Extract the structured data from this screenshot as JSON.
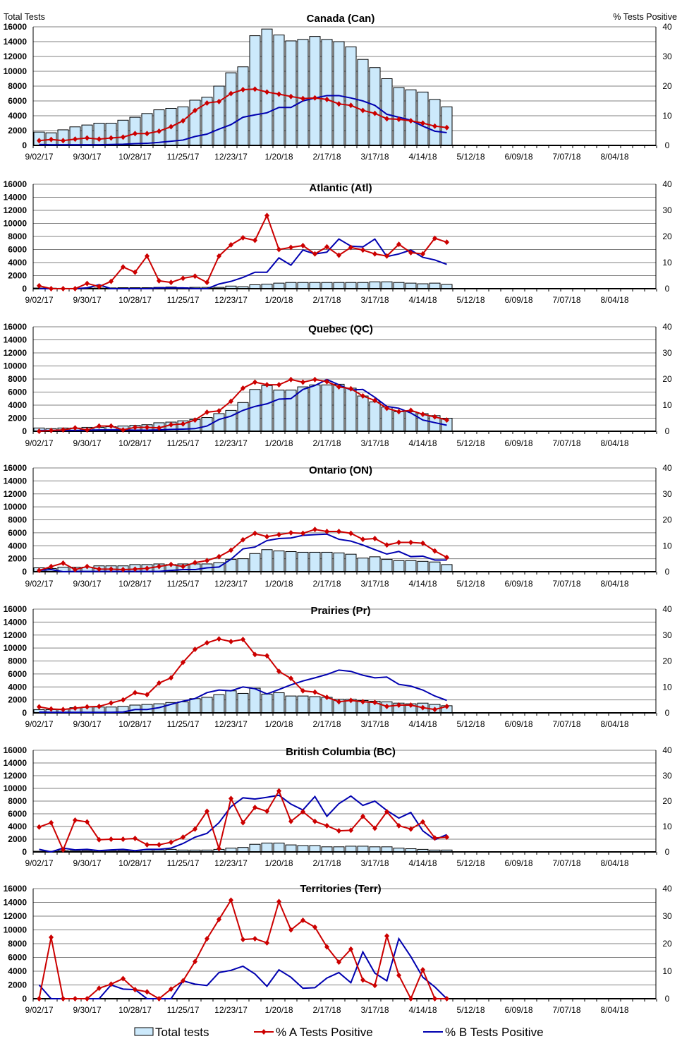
{
  "axis_labels": {
    "left": "Total Tests",
    "right": "% Tests Positive"
  },
  "legend": {
    "total": "Total tests",
    "a": "% A Tests Positive",
    "b": "% B Tests Positive"
  },
  "colors": {
    "bar_fill": "#cce9fb",
    "bar_edge": "#000000",
    "series_a": "#cc0000",
    "series_b": "#0000b0",
    "grid": "#808080"
  },
  "chart_data": {
    "type": "bar+line",
    "grid": true,
    "legend_position": "bottom",
    "ylim_left": [
      0,
      16000
    ],
    "ylim_right": [
      0,
      40
    ],
    "y_ticks_left": [
      "0",
      "2000",
      "4000",
      "6000",
      "8000",
      "10000",
      "12000",
      "14000",
      "16000"
    ],
    "y_ticks_right": [
      "0",
      "10",
      "20",
      "30",
      "40"
    ],
    "x_tick_labels": [
      "9/02/17",
      "9/30/17",
      "10/28/17",
      "11/25/17",
      "12/23/17",
      "1/20/18",
      "2/17/18",
      "3/17/18",
      "4/14/18",
      "5/12/18",
      "6/09/18",
      "7/07/18",
      "8/04/18"
    ],
    "categories": [
      "9/02/17",
      "9/09/17",
      "9/16/17",
      "9/23/17",
      "9/30/17",
      "10/07/17",
      "10/14/17",
      "10/21/17",
      "10/28/17",
      "11/04/17",
      "11/11/17",
      "11/18/17",
      "11/25/17",
      "12/02/17",
      "12/09/17",
      "12/16/17",
      "12/23/17",
      "12/30/17",
      "1/06/18",
      "1/13/18",
      "1/20/18",
      "1/27/18",
      "2/03/18",
      "2/10/18",
      "2/17/18",
      "2/24/18",
      "3/03/18",
      "3/10/18",
      "3/17/18",
      "3/24/18",
      "3/31/18",
      "4/07/18",
      "4/14/18",
      "4/21/18",
      "4/28/18"
    ],
    "panels": [
      {
        "title": "Canada (Can)",
        "total_tests": [
          1800,
          1700,
          2100,
          2500,
          2750,
          3000,
          3000,
          3400,
          3800,
          4300,
          4800,
          5000,
          5200,
          6100,
          6500,
          8000,
          9800,
          10600,
          14800,
          15700,
          14900,
          14100,
          14300,
          14700,
          14300,
          14000,
          13300,
          11600,
          10500,
          9000,
          7800,
          7500,
          7200,
          6200,
          5200
        ],
        "pct_a": [
          1.6,
          2,
          1.6,
          2.1,
          2.5,
          2.1,
          2.5,
          2.8,
          4,
          4,
          4.8,
          6.3,
          8.3,
          11.8,
          14.3,
          14.8,
          17.5,
          18.8,
          19,
          18,
          17.3,
          16.5,
          15.8,
          16,
          15.5,
          14,
          13.5,
          11.8,
          10.8,
          9,
          8.8,
          8.3,
          7.5,
          6.5,
          6
        ],
        "pct_b": [
          0.3,
          0.2,
          0.2,
          0.2,
          0.2,
          0.2,
          0.3,
          0.4,
          0.6,
          0.7,
          1,
          1.4,
          1.8,
          3,
          3.8,
          5.5,
          7,
          9.5,
          10.3,
          11,
          12.8,
          12.8,
          15,
          16,
          16.8,
          16.8,
          16,
          15,
          13.5,
          10.5,
          9.5,
          8.5,
          6.5,
          4.8,
          4.3
        ]
      },
      {
        "title": "Atlantic (Atl)",
        "total_tests": [
          100,
          80,
          60,
          60,
          100,
          100,
          120,
          150,
          150,
          150,
          200,
          250,
          150,
          200,
          200,
          200,
          400,
          300,
          600,
          700,
          850,
          950,
          950,
          950,
          950,
          950,
          950,
          950,
          1050,
          1050,
          950,
          850,
          750,
          850,
          650
        ],
        "pct_a": [
          1.1,
          0,
          0,
          0,
          2,
          0.8,
          2.8,
          8.3,
          6.3,
          12.5,
          3,
          2.4,
          4,
          4.8,
          2.4,
          12.5,
          16.8,
          19.5,
          18.5,
          28,
          15,
          15.8,
          16.5,
          13.3,
          16,
          12.8,
          15.8,
          14.8,
          13.3,
          12.5,
          17,
          13.8,
          13.3,
          19.3,
          17.8
        ],
        "pct_b": [
          0,
          0,
          0,
          0,
          0.3,
          1.5,
          0,
          0,
          0,
          0,
          0.3,
          0.3,
          0.3,
          0,
          0,
          1.8,
          2.8,
          4.3,
          6.3,
          6.3,
          11.8,
          9,
          14.8,
          13.3,
          14,
          19,
          16.3,
          16,
          19,
          12.3,
          13.3,
          14.8,
          12,
          11,
          9.3
        ]
      },
      {
        "title": "Quebec (QC)",
        "total_tests": [
          500,
          400,
          500,
          500,
          600,
          600,
          700,
          800,
          900,
          1000,
          1300,
          1400,
          1600,
          1800,
          2100,
          2700,
          3200,
          4400,
          6400,
          7000,
          6300,
          6300,
          6800,
          7100,
          7100,
          7200,
          6600,
          5400,
          4500,
          3700,
          3000,
          3000,
          2700,
          2400,
          2000
        ],
        "pct_a": [
          0,
          0.3,
          0.5,
          1.3,
          0.5,
          2,
          2,
          0.5,
          1.5,
          1.5,
          1.3,
          2.5,
          2.8,
          4.3,
          7.3,
          7.8,
          11.5,
          16.5,
          18.8,
          17.8,
          17.8,
          19.8,
          18.8,
          19.8,
          19,
          17,
          16.3,
          13.5,
          11.8,
          8.8,
          7.5,
          8,
          6.5,
          5.5,
          4.3
        ],
        "pct_b": [
          0.3,
          0.3,
          0.3,
          0.3,
          0.4,
          0.5,
          0.5,
          0.5,
          0.4,
          0.4,
          0.5,
          0.7,
          0.8,
          1,
          2,
          4.5,
          5.8,
          8,
          9.5,
          10.5,
          12.3,
          12.5,
          16,
          17.5,
          19.8,
          17.8,
          15.8,
          16,
          13,
          9.5,
          8.8,
          7,
          4.3,
          3.3,
          2.3
        ]
      },
      {
        "title": "Ontario (ON)",
        "total_tests": [
          600,
          500,
          700,
          700,
          700,
          900,
          900,
          900,
          1100,
          1100,
          1200,
          1100,
          1200,
          1200,
          1200,
          1400,
          1900,
          2000,
          2800,
          3400,
          3200,
          3100,
          3000,
          3000,
          3000,
          2900,
          2700,
          2100,
          2300,
          1900,
          1700,
          1700,
          1600,
          1500,
          1100
        ],
        "pct_a": [
          0.5,
          2,
          3.3,
          0.8,
          2,
          1,
          1,
          0.8,
          1,
          1.3,
          2,
          2.8,
          2,
          3.5,
          4.3,
          5.8,
          8.3,
          12.3,
          14.8,
          13.5,
          14.3,
          15,
          14.8,
          16.3,
          15.5,
          15.5,
          14.8,
          12.5,
          12.8,
          10.3,
          11.3,
          11.3,
          11,
          8,
          5.5
        ],
        "pct_b": [
          0.5,
          0.8,
          0,
          0.1,
          0.1,
          0.1,
          0.1,
          0.1,
          0.1,
          0.1,
          0.1,
          0.5,
          0.8,
          0.8,
          1.5,
          1.8,
          4.8,
          8.8,
          9.5,
          12,
          12.8,
          13,
          14,
          14.3,
          14.5,
          12.5,
          11.8,
          10.3,
          8.5,
          6.8,
          7.8,
          5.8,
          6,
          4.5,
          4.5
        ]
      },
      {
        "title": "Prairies (Pr)",
        "total_tests": [
          500,
          500,
          600,
          800,
          900,
          900,
          900,
          1000,
          1200,
          1300,
          1400,
          1600,
          1700,
          2200,
          2400,
          2800,
          3400,
          3000,
          3800,
          2900,
          3100,
          2600,
          2600,
          2500,
          2400,
          2100,
          2100,
          1900,
          1800,
          1700,
          1500,
          1400,
          1500,
          1300,
          1100
        ],
        "pct_a": [
          2.3,
          1.5,
          1.3,
          1.8,
          2.3,
          2.5,
          3.8,
          5,
          7.8,
          7,
          11.5,
          13.5,
          19.5,
          24.5,
          27,
          28.5,
          27.5,
          28.3,
          22.5,
          22,
          16,
          13.3,
          8.5,
          8,
          6,
          4.3,
          4.8,
          4.3,
          4,
          2.5,
          3,
          3,
          2,
          1.3,
          2.5
        ],
        "pct_b": [
          0.3,
          0.2,
          0.2,
          0.2,
          0.2,
          0.2,
          0.2,
          0.3,
          1.3,
          1.3,
          2,
          3.3,
          4.5,
          5.5,
          7.8,
          8.8,
          8.5,
          10,
          9.3,
          7.3,
          9,
          10.8,
          12.3,
          13.5,
          14.8,
          16.5,
          16,
          14.5,
          13.5,
          13.8,
          11,
          10.3,
          8.8,
          6.5,
          4.8
        ]
      },
      {
        "title": "British Columbia (BC)",
        "total_tests": [
          100,
          100,
          200,
          200,
          200,
          200,
          200,
          200,
          200,
          300,
          300,
          400,
          300,
          300,
          300,
          400,
          600,
          700,
          1200,
          1400,
          1400,
          1100,
          1000,
          1000,
          800,
          800,
          900,
          900,
          800,
          800,
          600,
          500,
          400,
          300,
          300
        ],
        "pct_a": [
          9.8,
          11.5,
          0.8,
          12.5,
          11.8,
          4.8,
          5,
          5,
          5.3,
          2.8,
          2.8,
          3.8,
          5.8,
          9,
          16,
          1.3,
          21,
          11.5,
          17.5,
          16,
          24,
          12,
          15.8,
          12,
          10.3,
          8.3,
          8.5,
          14,
          9.3,
          15.8,
          10.3,
          9,
          11.8,
          5.5,
          5.8
        ],
        "pct_b": [
          1,
          0,
          1.5,
          0.8,
          1,
          0.5,
          0.8,
          1,
          0.5,
          1,
          1,
          1.5,
          3.3,
          5.8,
          7.3,
          11.5,
          17.8,
          21.3,
          20.8,
          21.5,
          22.3,
          18.8,
          16.5,
          21.8,
          14,
          19,
          22,
          18.3,
          20,
          16.3,
          13.3,
          15.5,
          8.3,
          4.8,
          6.8
        ]
      },
      {
        "title": "Territories (Terr)",
        "total_tests": [
          0,
          0,
          0,
          0,
          0,
          0,
          0,
          0,
          0,
          0,
          0,
          0,
          0,
          0,
          0,
          0,
          0,
          0,
          0,
          0,
          0,
          0,
          0,
          0,
          0,
          0,
          0,
          0,
          0,
          0,
          0,
          0,
          0,
          0,
          0
        ],
        "pct_a": [
          0,
          22.3,
          0,
          0,
          0,
          3.8,
          5.3,
          7.3,
          3.3,
          2.5,
          0,
          3.5,
          6.5,
          13.5,
          21.8,
          28.8,
          35.8,
          21.5,
          21.8,
          20.3,
          35.3,
          25,
          28.5,
          26,
          18.8,
          13.3,
          18,
          6.8,
          4.8,
          22.8,
          8.5,
          0,
          10.5,
          0,
          0
        ],
        "pct_b": [
          5,
          0,
          0,
          0,
          0,
          0,
          5,
          3.5,
          3.3,
          0,
          0,
          0,
          6.5,
          5.3,
          4.8,
          9.5,
          10.3,
          11.8,
          9,
          4.5,
          10.5,
          7.8,
          3.8,
          4,
          7.5,
          9.5,
          5.8,
          17,
          9.3,
          6.5,
          21.8,
          15.3,
          7.8,
          4.3,
          0
        ]
      }
    ]
  }
}
